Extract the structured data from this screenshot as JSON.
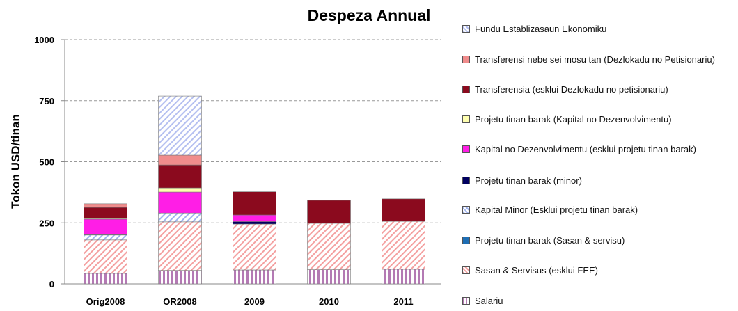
{
  "chart_data": {
    "type": "bar",
    "stacked": true,
    "title": "Despeza Annual",
    "y_label": "Tokon USD/tinan",
    "categories": [
      "Orig2008",
      "OR2008",
      "2009",
      "2010",
      "2011"
    ],
    "ylim": [
      0,
      1000
    ],
    "yticks": [
      0,
      250,
      500,
      750,
      1000
    ],
    "grid": true,
    "legend": "right",
    "series": [
      {
        "name": "Salariu",
        "color": "#b47ab4",
        "hatch": "vertical",
        "values": [
          43,
          55,
          57,
          58,
          60
        ]
      },
      {
        "name": "Sasan & Servisus (esklui FEE)",
        "color": "#f4a0a0",
        "hatch": "diagonal",
        "values": [
          137,
          199,
          188,
          190,
          196
        ]
      },
      {
        "name": "Projetu tinan barak (Sasan & servisu)",
        "color": "#1e6eb4",
        "hatch": "none",
        "values": [
          0,
          0,
          0,
          0,
          0
        ]
      },
      {
        "name": "Kapital Minor (Esklui projetu tinan barak)",
        "color": "#a0b4f0",
        "hatch": "diagonal",
        "values": [
          20,
          36,
          0,
          0,
          0
        ]
      },
      {
        "name": "Projetu tinan barak  (minor)",
        "color": "#000060",
        "hatch": "none",
        "values": [
          2,
          0,
          10,
          0,
          0
        ]
      },
      {
        "name": "Kapital no Dezenvolvimentu (esklui projetu tinan barak)",
        "color": "#ff1ee6",
        "hatch": "none",
        "values": [
          63,
          86,
          27,
          0,
          0
        ]
      },
      {
        "name": "Projetu tinan barak (Kapital no Dezenvolvimentu)",
        "color": "#ffffb0",
        "hatch": "none",
        "values": [
          3,
          17,
          0,
          0,
          0
        ]
      },
      {
        "name": "Transferensia (esklui Dezlokadu no petisionariu)",
        "color": "#8b0a1e",
        "hatch": "none",
        "values": [
          45,
          94,
          95,
          94,
          92
        ]
      },
      {
        "name": "Transferensi nebe sei mosu tan (Dezlokadu no Petisionariu)",
        "color": "#f08c8c",
        "hatch": "none",
        "values": [
          15,
          40,
          0,
          0,
          0
        ]
      },
      {
        "name": "Fundu Establizasaun Ekonomiku",
        "color": "#b4bff0",
        "hatch": "diagonal",
        "values": [
          0,
          242,
          0,
          0,
          0
        ]
      }
    ]
  }
}
